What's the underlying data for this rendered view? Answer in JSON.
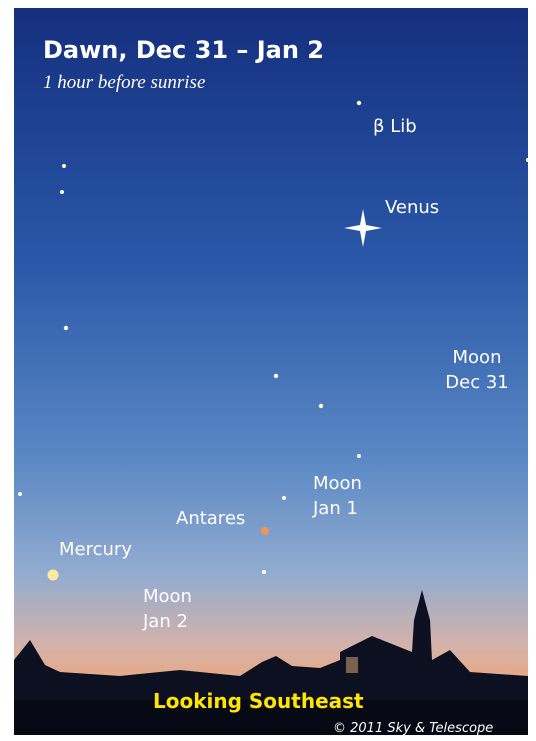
{
  "header": {
    "title": "Dawn, Dec 31 – Jan 2",
    "subtitle": "1 hour before sunrise"
  },
  "objects": [
    {
      "lines": [
        "β Lib"
      ]
    },
    {
      "lines": [
        "Venus"
      ]
    },
    {
      "lines": [
        "Moon",
        "Dec 31"
      ]
    },
    {
      "lines": [
        "Moon",
        "Jan 1"
      ]
    },
    {
      "lines": [
        "Antares"
      ]
    },
    {
      "lines": [
        "Mercury"
      ]
    },
    {
      "lines": [
        "Moon",
        "Jan 2"
      ]
    }
  ],
  "footer": {
    "direction": "Looking Southeast",
    "credit": "© 2011 Sky & Telescope"
  }
}
